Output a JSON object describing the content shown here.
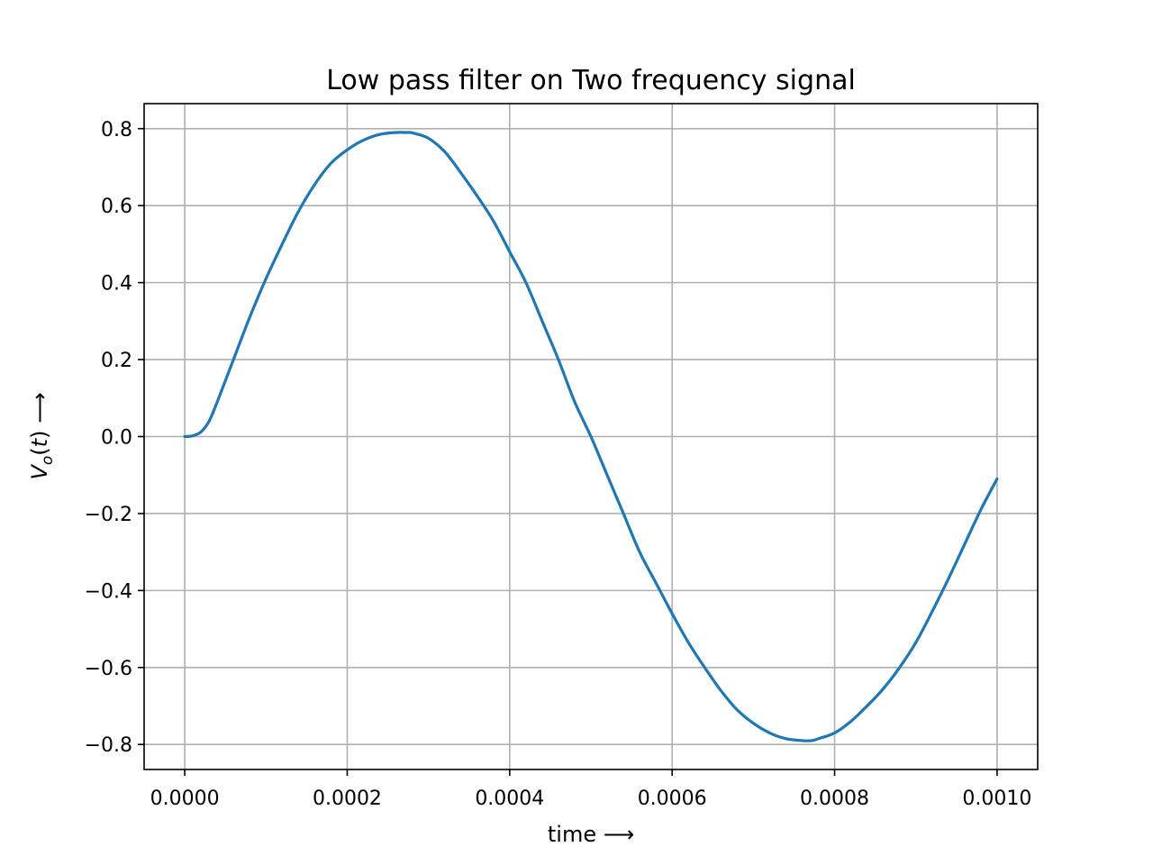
{
  "chart_data": {
    "type": "line",
    "title": "Low pass filter on Two frequency signal",
    "xlabel": "time ⟶",
    "ylabel": "V_o(t) ⟶",
    "xlim": [
      -5e-05,
      0.00105
    ],
    "ylim": [
      -0.865,
      0.865
    ],
    "xticks": [
      0.0,
      0.0002,
      0.0004,
      0.0006,
      0.0008,
      0.001
    ],
    "xtick_labels": [
      "0.0000",
      "0.0002",
      "0.0004",
      "0.0006",
      "0.0008",
      "0.0010"
    ],
    "yticks": [
      -0.8,
      -0.6,
      -0.4,
      -0.2,
      0.0,
      0.2,
      0.4,
      0.6,
      0.8
    ],
    "ytick_labels": [
      "−0.8",
      "−0.6",
      "−0.4",
      "−0.2",
      "0.0",
      "0.2",
      "0.4",
      "0.6",
      "0.8"
    ],
    "grid": true,
    "series": [
      {
        "color": "#1f77b4",
        "x": [
          0.0,
          1e-05,
          2e-05,
          3e-05,
          4e-05,
          5e-05,
          6e-05,
          8e-05,
          0.0001,
          0.00012,
          0.00014,
          0.00016,
          0.00018,
          0.0002,
          0.00022,
          0.00024,
          0.00026,
          0.000273,
          0.00028,
          0.0003,
          0.00032,
          0.00034,
          0.00036,
          0.00038,
          0.0004,
          0.00042,
          0.00044,
          0.00046,
          0.00048,
          0.0005,
          0.00052,
          0.00054,
          0.00056,
          0.00058,
          0.0006,
          0.00062,
          0.00064,
          0.00066,
          0.00068,
          0.0007,
          0.00072,
          0.00074,
          0.00076,
          0.000772,
          0.00078,
          0.0008,
          0.00082,
          0.00084,
          0.00086,
          0.00088,
          0.0009,
          0.00092,
          0.00094,
          0.00096,
          0.00098,
          0.001
        ],
        "y": [
          0.0,
          0.002,
          0.012,
          0.04,
          0.09,
          0.145,
          0.2,
          0.31,
          0.41,
          0.5,
          0.585,
          0.655,
          0.71,
          0.745,
          0.77,
          0.785,
          0.79,
          0.79,
          0.789,
          0.775,
          0.74,
          0.685,
          0.625,
          0.56,
          0.48,
          0.4,
          0.3,
          0.2,
          0.09,
          0.0,
          -0.1,
          -0.2,
          -0.3,
          -0.38,
          -0.46,
          -0.535,
          -0.6,
          -0.66,
          -0.71,
          -0.745,
          -0.77,
          -0.785,
          -0.79,
          -0.79,
          -0.785,
          -0.77,
          -0.74,
          -0.7,
          -0.655,
          -0.6,
          -0.535,
          -0.455,
          -0.37,
          -0.28,
          -0.19,
          -0.11
        ]
      }
    ]
  }
}
